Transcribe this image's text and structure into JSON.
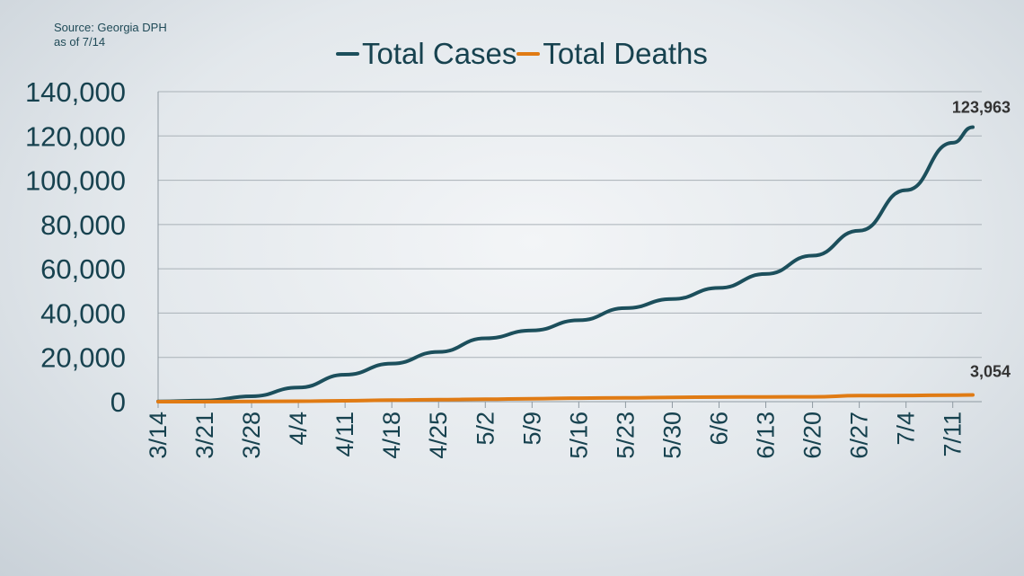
{
  "source": {
    "line1": "Source: Georgia DPH",
    "line2": "as of 7/14"
  },
  "chart_data": {
    "type": "line",
    "title": "",
    "xlabel": "",
    "ylabel": "",
    "ylim": [
      0,
      140000
    ],
    "yticks": [
      "0",
      "20,000",
      "40,000",
      "60,000",
      "80,000",
      "100,000",
      "120,000",
      "140,000"
    ],
    "xtick_labels": [
      "3/14",
      "3/21",
      "3/28",
      "4/4",
      "4/11",
      "4/18",
      "4/25",
      "5/2",
      "5/9",
      "5/16",
      "5/23",
      "5/30",
      "6/6",
      "6/13",
      "6/20",
      "6/27",
      "7/4",
      "7/11"
    ],
    "x": [
      "3/14",
      "3/21",
      "3/28",
      "4/4",
      "4/11",
      "4/18",
      "4/25",
      "5/2",
      "5/9",
      "5/16",
      "5/23",
      "5/30",
      "6/6",
      "6/13",
      "6/20",
      "6/27",
      "7/4",
      "7/11",
      "7/14"
    ],
    "grid": true,
    "legend_position": "top",
    "series": [
      {
        "name": "Total Cases",
        "color": "#1c4f5c",
        "values": [
          66,
          507,
          2446,
          6383,
          12159,
          17194,
          22491,
          28602,
          32181,
          36772,
          42242,
          46331,
          51357,
          57681,
          65928,
          77210,
          95516,
          116926,
          123963
        ]
      },
      {
        "name": "Total Deaths",
        "color": "#e07b14",
        "values": [
          0,
          14,
          79,
          198,
          416,
          673,
          906,
          1132,
          1342,
          1576,
          1754,
          1939,
          2052,
          2137,
          2208,
          2717,
          2805,
          2966,
          3054
        ]
      }
    ],
    "end_labels": [
      "123,963",
      "3,054"
    ]
  }
}
